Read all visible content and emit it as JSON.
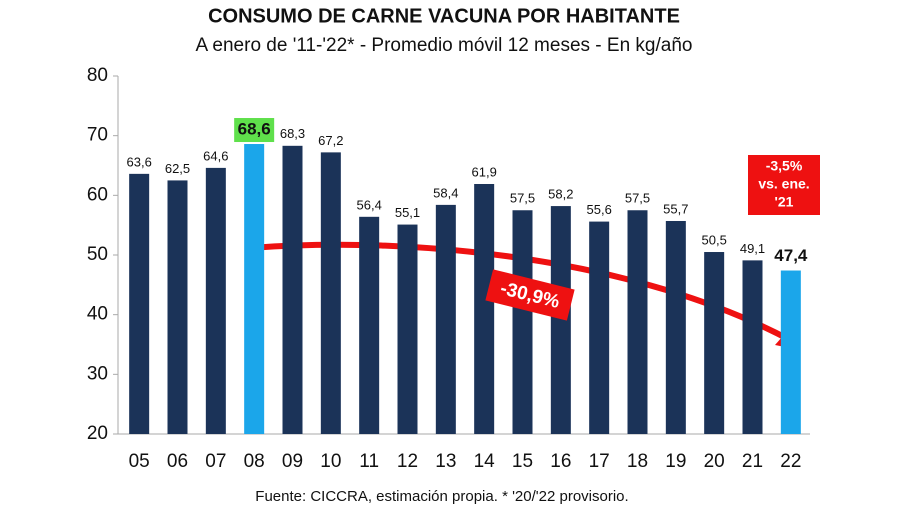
{
  "chart_data": {
    "type": "bar",
    "title": "CONSUMO DE CARNE VACUNA POR HABITANTE",
    "subtitle": "A enero de '11-'22* - Promedio móvil 12 meses -  En kg/año",
    "source": "Fuente: CICCRA, estimación propia. * '20/'22 provisorio.",
    "categories": [
      "05",
      "06",
      "07",
      "08",
      "09",
      "10",
      "11",
      "12",
      "13",
      "14",
      "15",
      "16",
      "17",
      "18",
      "19",
      "20",
      "21",
      "22"
    ],
    "values": [
      63.6,
      62.5,
      64.6,
      68.6,
      68.3,
      67.2,
      56.4,
      55.1,
      58.4,
      61.9,
      57.5,
      58.2,
      55.6,
      57.5,
      55.7,
      50.5,
      49.1,
      47.4
    ],
    "value_labels": [
      "63,6",
      "62,5",
      "64,6",
      "68,6",
      "68,3",
      "67,2",
      "56,4",
      "55,1",
      "58,4",
      "61,9",
      "57,5",
      "58,2",
      "55,6",
      "57,5",
      "55,7",
      "50,5",
      "49,1",
      "47,4"
    ],
    "colors": [
      "#1b3358",
      "#1b3358",
      "#1b3358",
      "#1ba6ea",
      "#1b3358",
      "#1b3358",
      "#1b3358",
      "#1b3358",
      "#1b3358",
      "#1b3358",
      "#1b3358",
      "#1b3358",
      "#1b3358",
      "#1b3358",
      "#1b3358",
      "#1b3358",
      "#1b3358",
      "#1ba6ea"
    ],
    "label_bold": [
      false,
      false,
      false,
      true,
      false,
      false,
      false,
      false,
      false,
      false,
      false,
      false,
      false,
      false,
      false,
      false,
      false,
      true
    ],
    "label_backgrounds": [
      null,
      null,
      null,
      "#5fe04b",
      null,
      null,
      null,
      null,
      null,
      null,
      null,
      null,
      null,
      null,
      null,
      null,
      null,
      null
    ],
    "ylim": [
      20,
      80
    ],
    "yticks": [
      20,
      30,
      40,
      50,
      60,
      70,
      80
    ],
    "grid": false,
    "annotations": [
      {
        "lines": [
          "-3,5%",
          "vs. ene.",
          "'21"
        ],
        "color": "#ee1111"
      },
      {
        "lines": [
          "-30,9%"
        ],
        "color": "#ee1111"
      }
    ]
  }
}
